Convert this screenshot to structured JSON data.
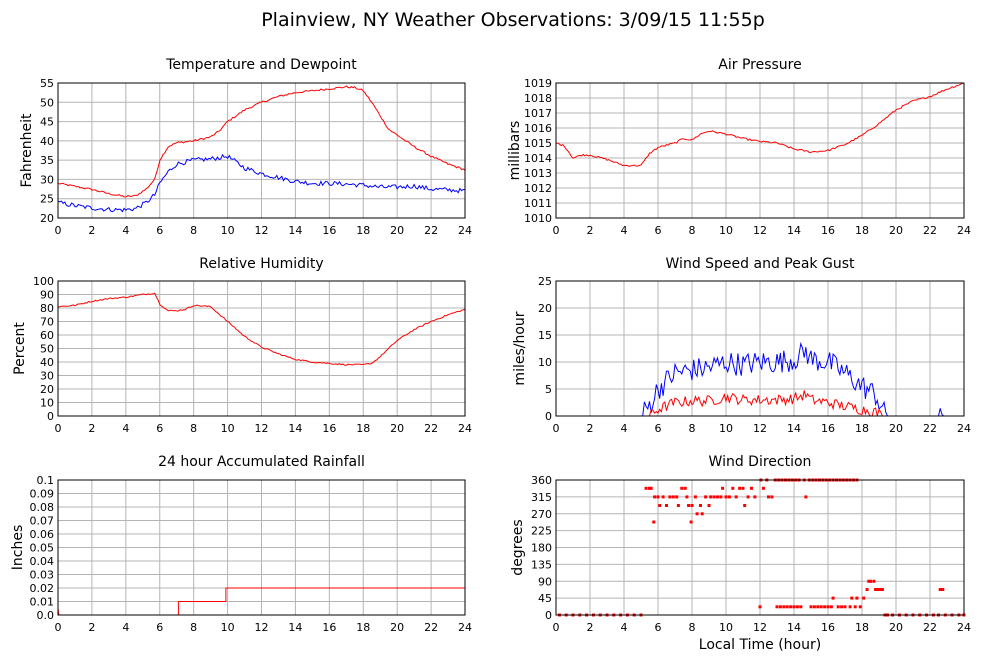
{
  "page_title": "Plainview, NY Weather Observations: 3/09/15 11:55p",
  "colors": {
    "red": "#ff0000",
    "blue": "#0000ff",
    "grid": "#b4b4b4",
    "frame": "#000000"
  },
  "chart_data": [
    {
      "id": "temp",
      "type": "line",
      "title": "Temperature and Dewpoint",
      "xlabel": "",
      "ylabel": "Fahrenheit",
      "xlim": [
        0,
        24
      ],
      "ylim": [
        20,
        55
      ],
      "xticks": [
        0,
        2,
        4,
        6,
        8,
        10,
        12,
        14,
        16,
        18,
        20,
        22,
        24
      ],
      "yticks": [
        20,
        25,
        30,
        35,
        40,
        45,
        50,
        55
      ],
      "grid": true,
      "series": [
        {
          "color": "#ff0000",
          "jitter": 0.25,
          "x": [
            0,
            1,
            2,
            3,
            4,
            4.6,
            5.2,
            5.7,
            6,
            6.5,
            7,
            8,
            9,
            9.5,
            10,
            11,
            12,
            13,
            14,
            15,
            16,
            17,
            17.5,
            18,
            18.5,
            19,
            19.5,
            20,
            21,
            22,
            23,
            24
          ],
          "y": [
            29,
            28.2,
            27.4,
            26.3,
            25.5,
            25.8,
            27.5,
            30,
            35,
            38.5,
            39.5,
            40,
            41,
            42.5,
            45,
            48,
            50,
            51.5,
            52.5,
            53,
            53.5,
            54,
            53.8,
            53,
            50,
            46.5,
            43,
            41.5,
            38.5,
            36,
            34,
            32.5
          ]
        },
        {
          "color": "#0000ff",
          "jitter": 0.6,
          "x": [
            0,
            1,
            2,
            3,
            4,
            4.6,
            5.2,
            5.7,
            6,
            6.5,
            7,
            8,
            9,
            10,
            10.5,
            11,
            12,
            13,
            14,
            15,
            16,
            17,
            18,
            19,
            20,
            21,
            22,
            23,
            24
          ],
          "y": [
            24,
            23.2,
            22.6,
            22.2,
            22.1,
            22.5,
            24,
            26,
            29,
            32,
            34,
            35,
            35.3,
            36,
            34.5,
            33,
            31.5,
            30.5,
            29.5,
            29,
            29,
            28.8,
            28.5,
            28,
            28,
            28.3,
            27.5,
            27.3,
            27
          ]
        }
      ]
    },
    {
      "id": "pressure",
      "type": "line",
      "title": "Air Pressure",
      "xlabel": "",
      "ylabel": "millibars",
      "xlim": [
        0,
        24
      ],
      "ylim": [
        1010,
        1019
      ],
      "xticks": [
        0,
        2,
        4,
        6,
        8,
        10,
        12,
        14,
        16,
        18,
        20,
        22,
        24
      ],
      "yticks": [
        1010,
        1011,
        1012,
        1013,
        1014,
        1015,
        1016,
        1017,
        1018,
        1019
      ],
      "grid": true,
      "series": [
        {
          "color": "#ff0000",
          "jitter": 0.06,
          "x": [
            0,
            0.5,
            1,
            1.5,
            2,
            3,
            4,
            5,
            5.5,
            6,
            7,
            7.5,
            8,
            8.5,
            9,
            10,
            11,
            12,
            13,
            14,
            15,
            16,
            17,
            18,
            19,
            20,
            21,
            22,
            23,
            24
          ],
          "y": [
            1015,
            1014.8,
            1014,
            1014.2,
            1014.2,
            1013.9,
            1013.5,
            1013.5,
            1014.3,
            1014.7,
            1015,
            1015.3,
            1015.2,
            1015.6,
            1015.8,
            1015.6,
            1015.3,
            1015.1,
            1015,
            1014.6,
            1014.4,
            1014.5,
            1014.9,
            1015.5,
            1016.3,
            1017.2,
            1017.8,
            1018.1,
            1018.6,
            1019
          ]
        }
      ]
    },
    {
      "id": "humidity",
      "type": "line",
      "title": "Relative Humidity",
      "xlabel": "",
      "ylabel": "Percent",
      "xlim": [
        0,
        24
      ],
      "ylim": [
        0,
        100
      ],
      "xticks": [
        0,
        2,
        4,
        6,
        8,
        10,
        12,
        14,
        16,
        18,
        20,
        22,
        24
      ],
      "yticks": [
        0,
        10,
        20,
        30,
        40,
        50,
        60,
        70,
        80,
        90,
        100
      ],
      "grid": true,
      "series": [
        {
          "color": "#ff0000",
          "jitter": 0.5,
          "x": [
            0,
            1,
            2,
            3,
            4,
            5,
            5.7,
            6,
            6.5,
            7,
            7.5,
            8,
            9,
            10,
            11,
            12,
            13,
            14,
            15,
            16,
            17,
            18,
            18.5,
            19,
            20,
            21,
            22,
            23,
            24
          ],
          "y": [
            81,
            82,
            85,
            87,
            88,
            90,
            91,
            83,
            78,
            78,
            79,
            82,
            81,
            70,
            59,
            51,
            46,
            42,
            40,
            39,
            38,
            38,
            39,
            44,
            56,
            64,
            70,
            75,
            79
          ]
        }
      ]
    },
    {
      "id": "wind",
      "type": "line",
      "title": "Wind Speed and Peak Gust",
      "xlabel": "",
      "ylabel": "miles/hour",
      "xlim": [
        0,
        24
      ],
      "ylim": [
        0,
        25
      ],
      "xticks": [
        0,
        2,
        4,
        6,
        8,
        10,
        12,
        14,
        16,
        18,
        20,
        22,
        24
      ],
      "yticks": [
        0,
        5,
        10,
        15,
        20,
        25
      ],
      "grid": true,
      "series": [
        {
          "color": "#0000ff",
          "jitter": 2.2,
          "x": [
            0,
            5,
            5.5,
            6,
            7,
            8,
            9,
            10,
            11,
            12,
            13,
            14,
            14.7,
            15,
            16,
            17,
            18,
            18.8,
            19.3,
            19.6,
            22.4,
            22.6,
            22.8,
            23,
            24
          ],
          "y": [
            0,
            0,
            2,
            5,
            8,
            8.5,
            9,
            10,
            9.5,
            10,
            10,
            10.5,
            12,
            10.5,
            10,
            8,
            5.5,
            4,
            0.5,
            0,
            0,
            1.5,
            0,
            0,
            0
          ]
        },
        {
          "color": "#ff0000",
          "jitter": 1.0,
          "x": [
            0,
            5.5,
            6,
            7,
            8,
            9,
            10,
            11,
            12,
            13,
            14,
            14.7,
            15,
            16,
            17,
            18,
            18.8,
            19.2,
            24
          ],
          "y": [
            0,
            0,
            1.2,
            2.5,
            2.8,
            2.8,
            3.5,
            3,
            3,
            3,
            3.2,
            4,
            3,
            2.5,
            1.8,
            1.2,
            0.8,
            0,
            0
          ]
        }
      ]
    },
    {
      "id": "rain",
      "type": "line",
      "title": "24 hour Accumulated Rainfall",
      "xlabel": "",
      "ylabel": "Inches",
      "xlim": [
        0,
        24
      ],
      "ylim": [
        0,
        0.1
      ],
      "xticks": [
        0,
        2,
        4,
        6,
        8,
        10,
        12,
        14,
        16,
        18,
        20,
        22,
        24
      ],
      "yticks": [
        0.0,
        0.01,
        0.02,
        0.03,
        0.04,
        0.05,
        0.06,
        0.07,
        0.08,
        0.09,
        0.1
      ],
      "ytick_labels": [
        "0.0",
        "0.01",
        "0.02",
        "0.03",
        "0.04",
        "0.05",
        "0.06",
        "0.07",
        "0.08",
        "0.09",
        "0.1"
      ],
      "grid": true,
      "series": [
        {
          "color": "#ff0000",
          "jitter": 0,
          "x": [
            0,
            0.05,
            0.1,
            7.1,
            7.1,
            9.9,
            9.9,
            24
          ],
          "y": [
            0.005,
            0,
            0,
            0,
            0.01,
            0.01,
            0.02,
            0.02
          ]
        }
      ]
    },
    {
      "id": "direction",
      "type": "scatter",
      "title": "Wind Direction",
      "xlabel": "Local Time (hour)",
      "ylabel": "degrees",
      "xlim": [
        0,
        24
      ],
      "ylim": [
        0,
        360
      ],
      "xticks": [
        0,
        2,
        4,
        6,
        8,
        10,
        12,
        14,
        16,
        18,
        20,
        22,
        24
      ],
      "yticks": [
        0,
        45,
        90,
        135,
        180,
        225,
        270,
        315,
        360
      ],
      "grid": true,
      "series": [
        {
          "color": "#ff0000",
          "points": [
            [
              0.2,
              0
            ],
            [
              0.6,
              0
            ],
            [
              1,
              0
            ],
            [
              1.4,
              0
            ],
            [
              1.8,
              0
            ],
            [
              2.2,
              0
            ],
            [
              2.6,
              0
            ],
            [
              3,
              0
            ],
            [
              3.4,
              0
            ],
            [
              3.8,
              0
            ],
            [
              4.2,
              0
            ],
            [
              4.6,
              0
            ],
            [
              5,
              0
            ],
            [
              5.3,
              338
            ],
            [
              5.5,
              338
            ],
            [
              5.6,
              338
            ],
            [
              5.75,
              248
            ],
            [
              5.8,
              315
            ],
            [
              6,
              315
            ],
            [
              6.1,
              292
            ],
            [
              6.3,
              315
            ],
            [
              6.5,
              292
            ],
            [
              6.7,
              315
            ],
            [
              6.9,
              315
            ],
            [
              7.1,
              315
            ],
            [
              7.2,
              292
            ],
            [
              7.4,
              338
            ],
            [
              7.6,
              338
            ],
            [
              7.7,
              315
            ],
            [
              7.8,
              292
            ],
            [
              7.95,
              248
            ],
            [
              8,
              292
            ],
            [
              8.2,
              315
            ],
            [
              8.3,
              270
            ],
            [
              8.5,
              292
            ],
            [
              8.6,
              270
            ],
            [
              8.8,
              315
            ],
            [
              9,
              292
            ],
            [
              9.1,
              315
            ],
            [
              9.3,
              315
            ],
            [
              9.5,
              315
            ],
            [
              9.7,
              315
            ],
            [
              9.8,
              338
            ],
            [
              10,
              315
            ],
            [
              10.2,
              315
            ],
            [
              10.4,
              338
            ],
            [
              10.6,
              315
            ],
            [
              10.8,
              338
            ],
            [
              11,
              338
            ],
            [
              11.1,
              292
            ],
            [
              11.3,
              315
            ],
            [
              11.5,
              338
            ],
            [
              11.7,
              315
            ],
            [
              12,
              22
            ],
            [
              12.05,
              360
            ],
            [
              12.2,
              338
            ],
            [
              12.4,
              360
            ],
            [
              12.5,
              315
            ],
            [
              12.7,
              315
            ],
            [
              12.9,
              360
            ],
            [
              13.1,
              360
            ],
            [
              13.3,
              360
            ],
            [
              13.5,
              360
            ],
            [
              13.7,
              360
            ],
            [
              13.9,
              360
            ],
            [
              14.1,
              360
            ],
            [
              14.3,
              360
            ],
            [
              14.6,
              360
            ],
            [
              14.7,
              315
            ],
            [
              14.9,
              360
            ],
            [
              15.1,
              360
            ],
            [
              15.3,
              360
            ],
            [
              15.5,
              360
            ],
            [
              15.7,
              360
            ],
            [
              15.9,
              360
            ],
            [
              16.1,
              360
            ],
            [
              16.3,
              360
            ],
            [
              16.5,
              360
            ],
            [
              16.7,
              360
            ],
            [
              16.9,
              360
            ],
            [
              17.1,
              360
            ],
            [
              17.3,
              360
            ],
            [
              17.5,
              360
            ],
            [
              17.7,
              360
            ],
            [
              13,
              22
            ],
            [
              13.2,
              22
            ],
            [
              13.4,
              22
            ],
            [
              13.6,
              22
            ],
            [
              13.8,
              22
            ],
            [
              14,
              22
            ],
            [
              14.2,
              22
            ],
            [
              14.4,
              22
            ],
            [
              15,
              22
            ],
            [
              15.2,
              22
            ],
            [
              15.4,
              22
            ],
            [
              15.6,
              22
            ],
            [
              15.8,
              22
            ],
            [
              16,
              22
            ],
            [
              16.2,
              22
            ],
            [
              16.6,
              22
            ],
            [
              16.8,
              22
            ],
            [
              17,
              22
            ],
            [
              17.3,
              22
            ],
            [
              17.6,
              22
            ],
            [
              16.3,
              45
            ],
            [
              17.4,
              45
            ],
            [
              17.7,
              45
            ],
            [
              17.9,
              22
            ],
            [
              18.1,
              45
            ],
            [
              18.3,
              68
            ],
            [
              18.4,
              90
            ],
            [
              18.5,
              90
            ],
            [
              18.7,
              90
            ],
            [
              18.8,
              68
            ],
            [
              18.9,
              68
            ],
            [
              19,
              68
            ],
            [
              19.1,
              68
            ],
            [
              19.2,
              68
            ],
            [
              19.35,
              0
            ],
            [
              19.5,
              0
            ],
            [
              19.8,
              0
            ],
            [
              20.2,
              0
            ],
            [
              20.6,
              0
            ],
            [
              21,
              0
            ],
            [
              21.4,
              0
            ],
            [
              21.8,
              0
            ],
            [
              22.2,
              0
            ],
            [
              22.5,
              0
            ],
            [
              22.6,
              68
            ],
            [
              22.75,
              68
            ],
            [
              22.9,
              0
            ],
            [
              23.3,
              0
            ],
            [
              23.7,
              0
            ],
            [
              24,
              0
            ]
          ]
        }
      ]
    }
  ]
}
